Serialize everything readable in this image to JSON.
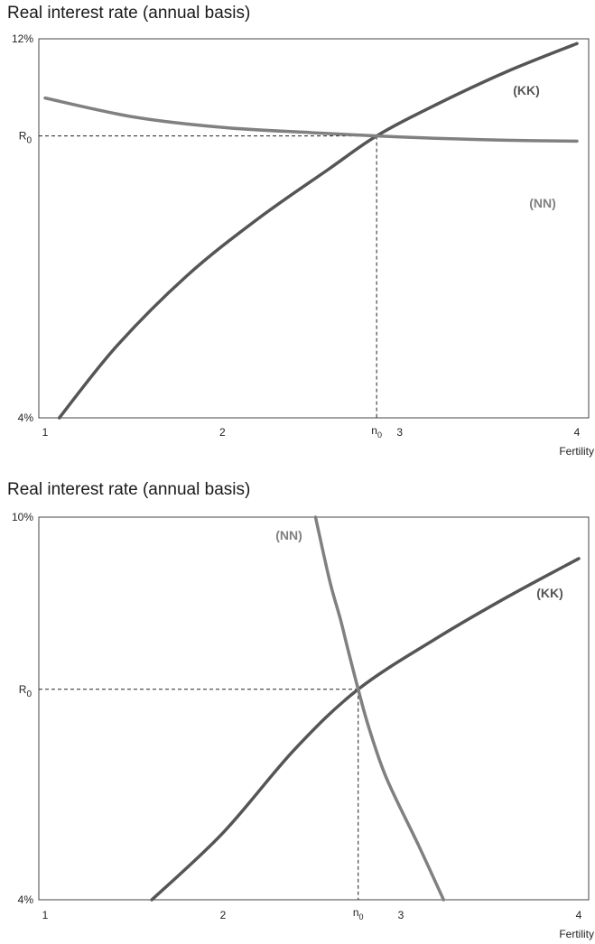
{
  "chart_data": [
    {
      "type": "line",
      "title": "Real interest rate (annual basis)",
      "xlabel": "Fertility",
      "ylabel": "",
      "xlim": [
        1,
        4
      ],
      "ylim": [
        4,
        12
      ],
      "x_ticks": [
        "1",
        "2",
        "3",
        "4"
      ],
      "y_ticks": [
        "12%",
        "4%"
      ],
      "reference": {
        "x_label": "n0",
        "y_label": "R0",
        "x": 2.87,
        "y": 9.95
      },
      "series": [
        {
          "name": "(KK)",
          "color": "#555555",
          "x": [
            1.08,
            1.4,
            1.8,
            2.2,
            2.6,
            2.87,
            3.2,
            3.6,
            4.0
          ],
          "y": [
            4.0,
            5.5,
            7.0,
            8.2,
            9.25,
            9.95,
            10.6,
            11.3,
            11.9
          ]
        },
        {
          "name": "(NN)",
          "color": "#808080",
          "x": [
            1.0,
            1.5,
            2.0,
            2.5,
            2.87,
            3.2,
            3.6,
            4.0
          ],
          "y": [
            10.75,
            10.35,
            10.13,
            10.02,
            9.95,
            9.9,
            9.86,
            9.84
          ]
        }
      ]
    },
    {
      "type": "line",
      "title": "Real interest rate (annual basis)",
      "xlabel": "Fertility",
      "ylabel": "",
      "xlim": [
        1,
        4
      ],
      "ylim": [
        4,
        10
      ],
      "x_ticks": [
        "1",
        "2",
        "3",
        "4"
      ],
      "y_ticks": [
        "10%",
        "4%"
      ],
      "reference": {
        "x_label": "n0",
        "y_label": "R0",
        "x": 2.76,
        "y": 7.3
      },
      "series": [
        {
          "name": "(KK)",
          "color": "#555555",
          "x": [
            1.6,
            2.0,
            2.4,
            2.76,
            3.2,
            3.6,
            4.0
          ],
          "y": [
            4.0,
            5.05,
            6.35,
            7.3,
            8.1,
            8.75,
            9.35
          ]
        },
        {
          "name": "(NN)",
          "color": "#808080",
          "x": [
            2.52,
            2.6,
            2.66,
            2.7,
            2.76,
            2.82,
            2.92,
            3.1,
            3.24
          ],
          "y": [
            10.0,
            9.0,
            8.4,
            7.95,
            7.3,
            6.7,
            5.9,
            4.85,
            4.0
          ]
        }
      ]
    }
  ]
}
